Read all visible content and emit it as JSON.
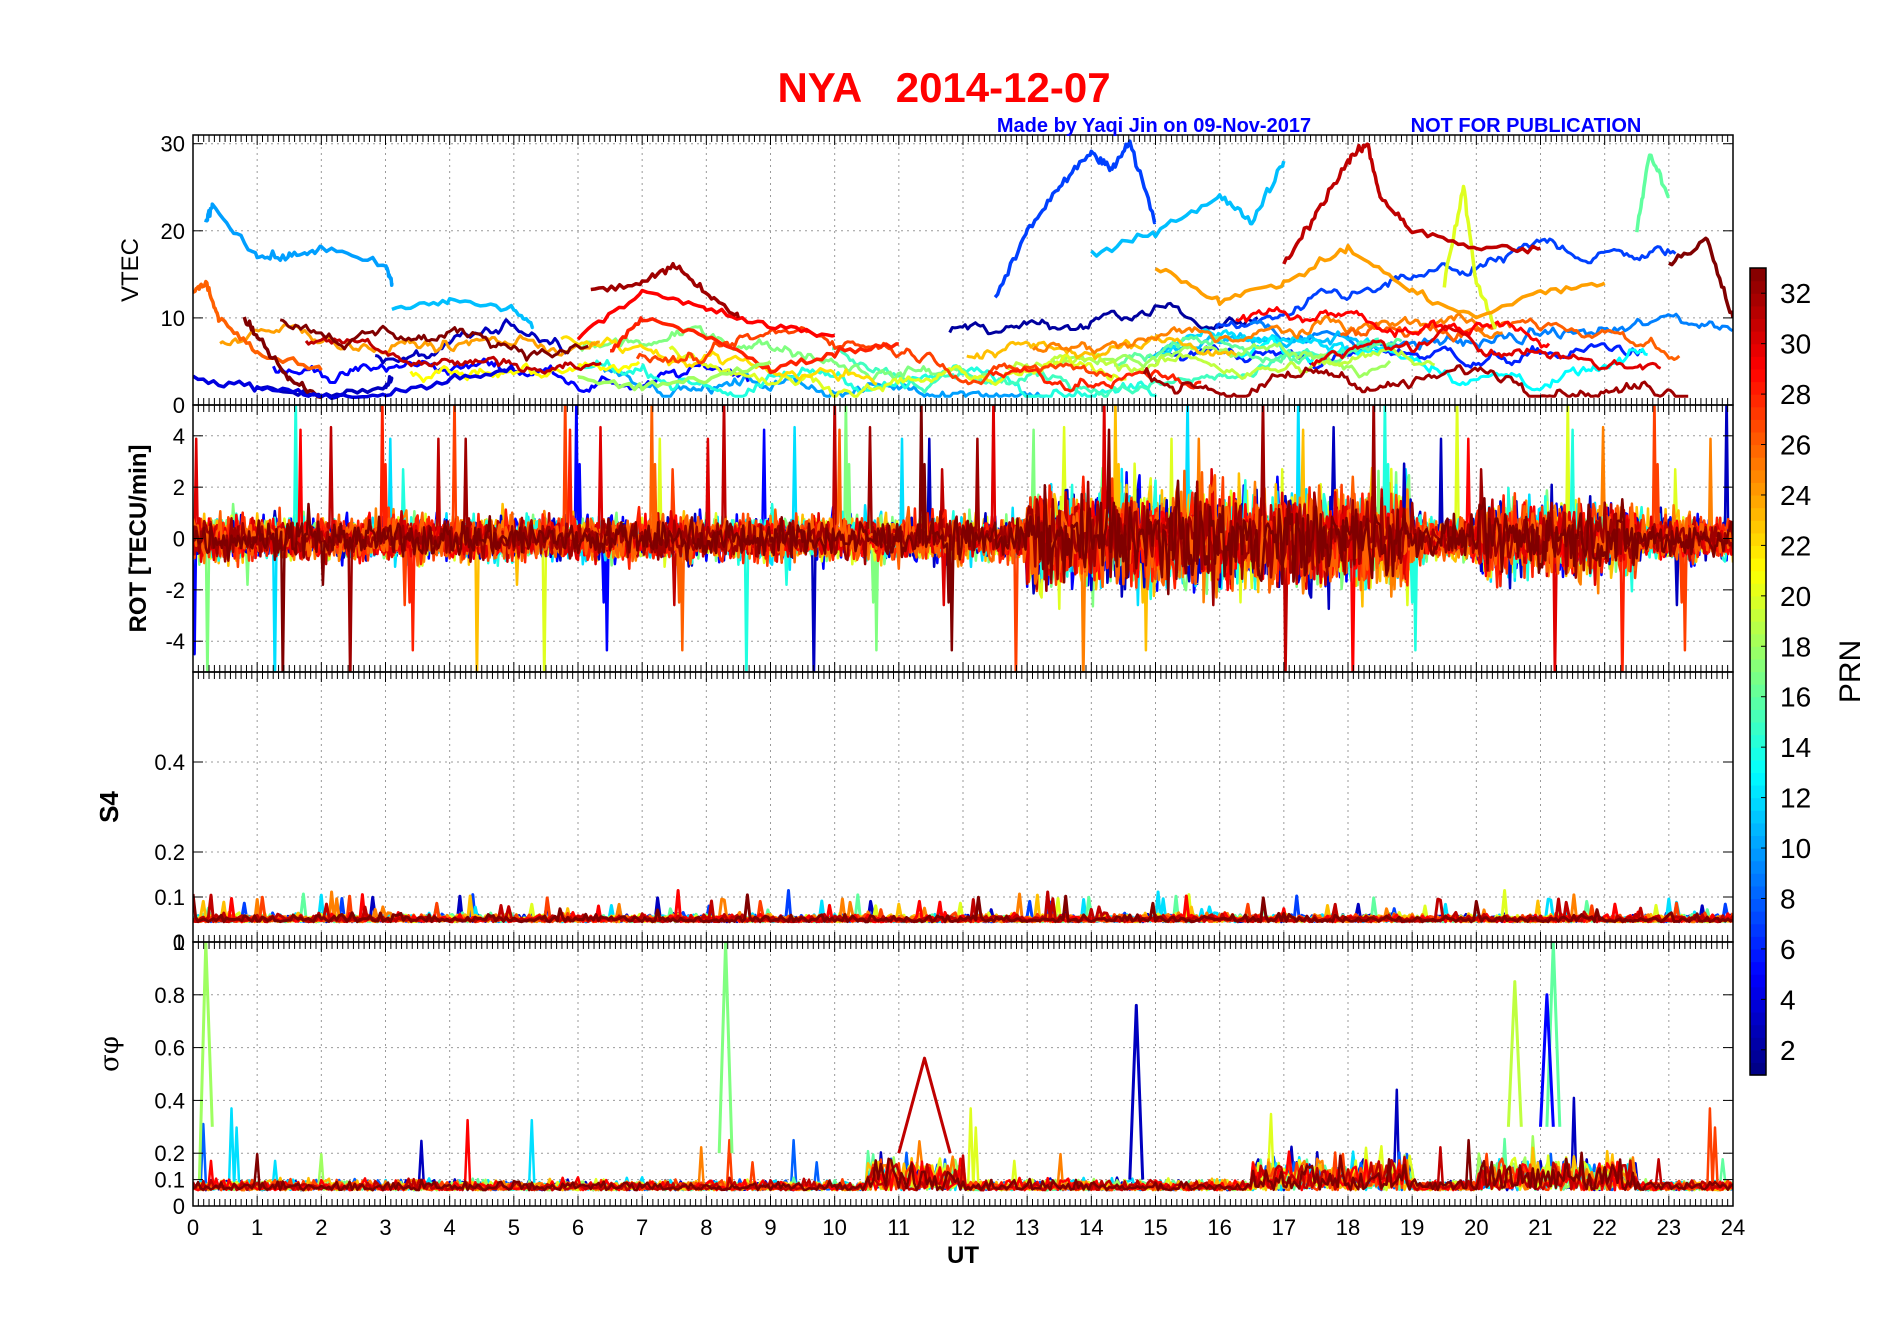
{
  "title": "NYA   2014-12-07",
  "subtitle_left": "Made by Yaqi Jin on 09-Nov-2017",
  "subtitle_right": "NOT FOR PUBLICATION",
  "colors": {
    "title": "#ff0000",
    "subtitle": "#0000ff",
    "grid": "#b0b0b0",
    "axis": "#000000"
  },
  "colorbar": {
    "label": "PRN",
    "min": 1,
    "max": 33,
    "ticks": [
      "2",
      "4",
      "6",
      "8",
      "10",
      "12",
      "14",
      "16",
      "18",
      "20",
      "22",
      "24",
      "26",
      "28",
      "30",
      "32"
    ],
    "tick_values": [
      2,
      4,
      6,
      8,
      10,
      12,
      14,
      16,
      18,
      20,
      22,
      24,
      26,
      28,
      30,
      32
    ],
    "colormap": "jet"
  },
  "chart_data": [
    {
      "type": "line",
      "panel": "vtec",
      "ylabel": "VTEC",
      "ylim": [
        0,
        31
      ],
      "yticks": [
        "0",
        "10",
        "20",
        "30"
      ],
      "ytick_values": [
        0,
        10,
        20,
        30
      ],
      "xlim": [
        0,
        24
      ],
      "grid": true,
      "series": [
        {
          "prn": 3,
          "x": [
            1,
            2,
            3,
            3.1
          ],
          "values": [
            2,
            1,
            2,
            3
          ]
        },
        {
          "prn": 7,
          "x": [
            12.5,
            13,
            13.5,
            14,
            14.3,
            14.6,
            15
          ],
          "values": [
            12,
            20,
            25,
            29,
            27,
            30,
            21
          ]
        },
        {
          "prn": 10,
          "x": [
            0.2,
            0.3,
            1,
            1.5,
            2,
            3,
            3.1
          ],
          "values": [
            21,
            23,
            17,
            17,
            18,
            16,
            14
          ]
        },
        {
          "prn": 11,
          "x": [
            3.1,
            4,
            5,
            5.3
          ],
          "values": [
            11,
            12,
            11,
            9
          ]
        },
        {
          "prn": 11,
          "x": [
            14,
            15,
            16,
            16.5,
            17
          ],
          "values": [
            17,
            20,
            24,
            21,
            28
          ]
        },
        {
          "prn": 16,
          "x": [
            22.5,
            22.7,
            23
          ],
          "values": [
            20,
            29,
            24
          ]
        },
        {
          "prn": 20,
          "x": [
            19.5,
            19.8,
            20,
            20.3
          ],
          "values": [
            14,
            25,
            14,
            9
          ]
        },
        {
          "prn": 26,
          "x": [
            0,
            0.2,
            0.4,
            1,
            2
          ],
          "values": [
            13,
            14,
            10,
            6,
            4
          ]
        },
        {
          "prn": 28,
          "x": [
            6.5,
            7,
            8,
            9,
            10,
            11
          ],
          "values": [
            6,
            10,
            8,
            4,
            6,
            7
          ]
        },
        {
          "prn": 29,
          "x": [
            6,
            7,
            8,
            9,
            10
          ],
          "values": [
            8,
            13,
            11,
            9,
            8
          ]
        },
        {
          "prn": 31,
          "x": [
            17,
            17.5,
            18,
            18.3,
            18.5,
            19,
            20,
            21
          ],
          "values": [
            16,
            22,
            28,
            30,
            24,
            20,
            18,
            18
          ]
        },
        {
          "prn": 32,
          "x": [
            6.2,
            7,
            7.5,
            8,
            8.5
          ],
          "values": [
            13,
            14,
            16,
            13,
            10
          ]
        },
        {
          "prn": 33,
          "x": [
            0.8,
            1,
            1.5,
            2
          ],
          "values": [
            10,
            8,
            3,
            1
          ]
        },
        {
          "prn": 33,
          "x": [
            23,
            23.6,
            24
          ],
          "values": [
            16,
            19,
            10
          ]
        },
        {
          "prn": 4,
          "x": [
            0,
            1,
            2,
            3,
            4,
            5
          ],
          "values": [
            3,
            2,
            1,
            1,
            3,
            4
          ]
        },
        {
          "prn": 18,
          "x": [
            6,
            7,
            8,
            9
          ],
          "values": [
            3,
            2,
            3,
            5
          ]
        },
        {
          "prn": 24,
          "x": [
            15,
            16,
            17,
            18,
            19,
            20,
            21,
            22
          ],
          "values": [
            16,
            12,
            14,
            18,
            13,
            10,
            13,
            14
          ]
        }
      ]
    },
    {
      "type": "line",
      "panel": "rot",
      "ylabel": "ROT [TECU/min]",
      "ylim": [
        -5.2,
        5.2
      ],
      "yticks": [
        "-4",
        "-2",
        "0",
        "2",
        "4"
      ],
      "ytick_values": [
        -4,
        -2,
        0,
        2,
        4
      ],
      "xlim": [
        0,
        24
      ],
      "grid": true
    },
    {
      "type": "line",
      "panel": "s4",
      "ylabel": "S4",
      "ylim": [
        0,
        0.6
      ],
      "yticks": [
        "0",
        "0.1",
        "0.2",
        "0.4"
      ],
      "ytick_values": [
        0,
        0.1,
        0.2,
        0.4
      ],
      "xlim": [
        0,
        24
      ],
      "grid": true
    },
    {
      "type": "line",
      "panel": "sigma_phi",
      "ylabel": "σφ",
      "ylim": [
        0,
        1
      ],
      "yticks": [
        "0",
        "0.1",
        "0.2",
        "0.4",
        "0.6",
        "0.8",
        "1"
      ],
      "ytick_values": [
        0,
        0.1,
        0.2,
        0.4,
        0.6,
        0.8,
        1
      ],
      "xlim": [
        0,
        24
      ],
      "xlabel": "UT",
      "xticks": [
        "0",
        "1",
        "2",
        "3",
        "4",
        "5",
        "6",
        "7",
        "8",
        "9",
        "10",
        "11",
        "12",
        "13",
        "14",
        "15",
        "16",
        "17",
        "18",
        "19",
        "20",
        "21",
        "22",
        "23",
        "24"
      ],
      "xtick_values": [
        0,
        1,
        2,
        3,
        4,
        5,
        6,
        7,
        8,
        9,
        10,
        11,
        12,
        13,
        14,
        15,
        16,
        17,
        18,
        19,
        20,
        21,
        22,
        23,
        24
      ],
      "grid": true,
      "series": [
        {
          "prn": 18,
          "x": [
            0.1,
            0.2,
            0.3
          ],
          "values": [
            0.1,
            1,
            0.3
          ]
        },
        {
          "prn": 17,
          "x": [
            8.2,
            8.3,
            8.4
          ],
          "values": [
            0.2,
            1,
            0.2
          ]
        },
        {
          "prn": 3,
          "x": [
            14.6,
            14.7,
            14.8
          ],
          "values": [
            0.1,
            0.76,
            0.1
          ]
        },
        {
          "prn": 31,
          "x": [
            11,
            11.4,
            11.8
          ],
          "values": [
            0.2,
            0.56,
            0.2
          ]
        },
        {
          "prn": 19,
          "x": [
            20.5,
            20.6,
            20.7
          ],
          "values": [
            0.3,
            0.85,
            0.3
          ]
        },
        {
          "prn": 16,
          "x": [
            21.1,
            21.2,
            21.3
          ],
          "values": [
            0.3,
            1,
            0.3
          ]
        },
        {
          "prn": 5,
          "x": [
            21,
            21.1,
            21.2
          ],
          "values": [
            0.3,
            0.8,
            0.3
          ]
        }
      ]
    }
  ]
}
